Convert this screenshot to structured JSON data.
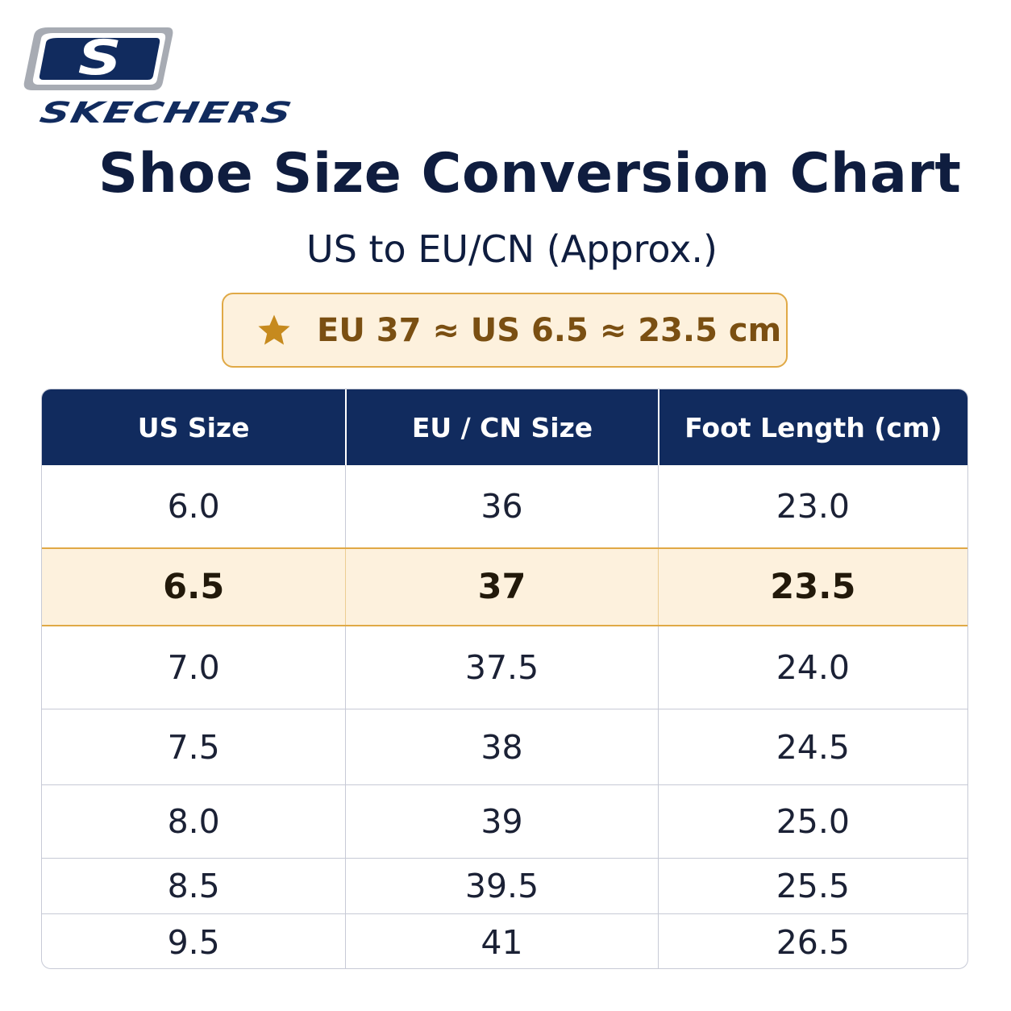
{
  "brand": {
    "logo_wordmark": "SKECHERS",
    "logo_monogram": "S",
    "colors": {
      "navy": "#112b5e",
      "silver": "#a7abb3"
    }
  },
  "title": "Shoe Size Conversion Chart",
  "subtitle": "US to EU/CN (Approx.)",
  "callout": {
    "icon": "star-icon",
    "text": "EU 37 ≈ US 6.5 ≈ 23.5 cm",
    "background": "#fdf1dd",
    "border": "#e0a946"
  },
  "table": {
    "header_background": "#112b5e",
    "highlight_background": "#fdf1dd",
    "columns": [
      "US Size",
      "EU / CN Size",
      "Foot Length (cm)"
    ],
    "rows": [
      {
        "us": "6.0",
        "eu_cn": "36",
        "foot_cm": "23.0",
        "highlighted": false
      },
      {
        "us": "6.5",
        "eu_cn": "37",
        "foot_cm": "23.5",
        "highlighted": true
      },
      {
        "us": "7.0",
        "eu_cn": "37.5",
        "foot_cm": "24.0",
        "highlighted": false
      },
      {
        "us": "7.5",
        "eu_cn": "38",
        "foot_cm": "24.5",
        "highlighted": false
      },
      {
        "us": "8.0",
        "eu_cn": "39",
        "foot_cm": "25.0",
        "highlighted": false
      },
      {
        "us": "8.5",
        "eu_cn": "39.5",
        "foot_cm": "25.5",
        "highlighted": false
      },
      {
        "us": "9.5",
        "eu_cn": "41",
        "foot_cm": "26.5",
        "highlighted": false
      }
    ]
  }
}
